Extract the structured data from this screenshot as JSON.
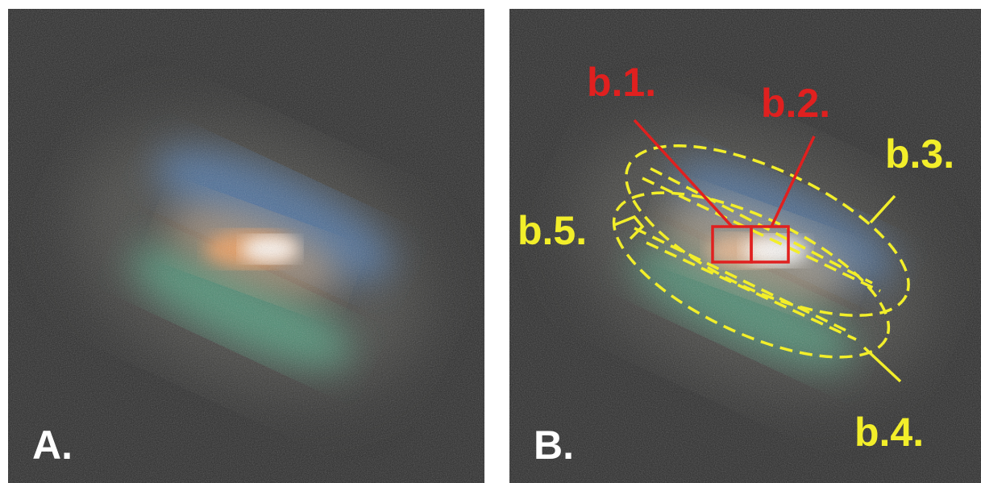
{
  "panels": {
    "a": {
      "label": "A."
    },
    "b": {
      "label": "B."
    }
  },
  "annotations": {
    "b1": {
      "text": "b.1.",
      "color": "#e0201f"
    },
    "b2": {
      "text": "b.2.",
      "color": "#e0201f"
    },
    "b3": {
      "text": "b.3.",
      "color": "#f2ee2a"
    },
    "b4": {
      "text": "b.4.",
      "color": "#f2ee2a"
    },
    "b5": {
      "text": "b.5.",
      "color": "#f2ee2a"
    }
  }
}
